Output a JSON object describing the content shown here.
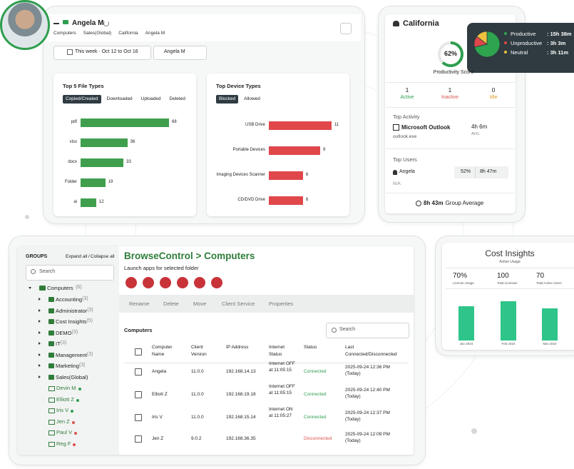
{
  "user_panel": {
    "name": "Angela M",
    "breadcrumb": [
      "Computers",
      "Sales(Global)",
      "California",
      "Angela M"
    ],
    "date_range": "This week · Oct 12 to Oct 16",
    "user_select": "Angela M"
  },
  "file_types": {
    "title": "Top 5 File Types",
    "tabs": [
      "Copied/Created",
      "Downloaded",
      "Uploaded",
      "Deleted"
    ],
    "categories": [
      "pdf",
      "xlsx",
      "docx",
      "Folder",
      "ai"
    ],
    "values": [
      68,
      36,
      33,
      19,
      12
    ],
    "color": "#3f9f4c"
  },
  "device_types": {
    "title": "Top Device Types",
    "tabs": [
      "Blocked",
      "Allowed"
    ],
    "categories": [
      "USB Drive",
      "Portable Devices",
      "Imaging Devices Scanner",
      "CD/DVD Drive"
    ],
    "values": [
      11,
      9,
      6,
      6
    ],
    "color": "#e0474a"
  },
  "location": {
    "title": "California",
    "productivity_score": {
      "value": 62,
      "label": "62%"
    },
    "score_caption": "Productivity Score",
    "stats": [
      {
        "value": "1",
        "label": "Active",
        "color": "#2e9e4f"
      },
      {
        "value": "1",
        "label": "Inactive",
        "color": "#d9534f"
      },
      {
        "value": "0",
        "label": "Idle",
        "color": "#e0a030"
      }
    ],
    "top_activity_label": "Top Activity",
    "app": "Microsoft Outlook",
    "exe": "outlook.exe",
    "avg_time": "4h 6m",
    "avg_label": "AVG",
    "top_users_label": "Top Users",
    "user": "Angela",
    "user_pct": "52%",
    "user_time": "8h 47m",
    "na": "N/A",
    "group_avg": "8h 43m",
    "group_avg_label": "Group Average"
  },
  "productivity": {
    "items": [
      {
        "name": "Productive",
        "time": ": 15h 38m",
        "color": "#2ea44f"
      },
      {
        "name": "Unproductive",
        "time": ": 3h 3m",
        "color": "#e0474a"
      },
      {
        "name": "Neutral",
        "time": ": 3h 11m",
        "color": "#f0c040"
      }
    ],
    "values": [
      938,
      183,
      191
    ]
  },
  "browse": {
    "groups_label": "GROUPS",
    "expand": "Expand all",
    "separator": "/",
    "collapse": "Collapse all",
    "search": "Search",
    "root": "Computers",
    "root_count": "(6)",
    "groups": [
      {
        "name": "Accounting",
        "count": "(3)"
      },
      {
        "name": "Administrator",
        "count": "(3)"
      },
      {
        "name": "Cost Insights",
        "count": "(5)"
      },
      {
        "name": "DEMO",
        "count": "(3)"
      },
      {
        "name": "IT",
        "count": "(3)"
      },
      {
        "name": "Management",
        "count": "(3)"
      },
      {
        "name": "Marketing",
        "count": "(3)"
      },
      {
        "name": "Sales(Global)",
        "count": ""
      }
    ],
    "computers": [
      {
        "name": "Devin M",
        "color": "#2e9e4f"
      },
      {
        "name": "Elliott Z",
        "color": "#2e9e4f"
      },
      {
        "name": "Iris V",
        "color": "#2e9e4f"
      },
      {
        "name": "Jen Z",
        "color": "#d9534f"
      },
      {
        "name": "Paul V",
        "color": "#d9534f"
      },
      {
        "name": "Reg F",
        "color": "#d9534f"
      }
    ],
    "title": "BrowseControl > Computers",
    "subtitle": "Launch apps for selected folder",
    "toolbar": [
      "Rename",
      "Delete",
      "Move",
      "Client Service",
      "Properties"
    ],
    "table_title": "Computers",
    "table_search": "Search",
    "columns": [
      "Computer Name",
      "Client Version",
      "IP Address",
      "Internet Status",
      "Status",
      "Last Connected/Disconnected"
    ],
    "rows": [
      {
        "cells": [
          "Angela",
          "11.0.0",
          "192.168.14.13",
          "Internet OFF at 11:05:15",
          "Connected",
          "2025-09-24 12:36 PM (Today)"
        ],
        "status_color": "#2e9e4f"
      },
      {
        "cells": [
          "Elliott Z",
          "11.0.0",
          "192.168.19.18",
          "Internet OFF at 11:05:15",
          "Connected",
          "2025-09-24 12:40 PM (Today)"
        ],
        "status_color": "#2e9e4f"
      },
      {
        "cells": [
          "Iris V",
          "11.0.0",
          "192.168.15.14",
          "Internet ON at 11:05:27",
          "Connected",
          "2025-09-24 12:37 PM (Today)"
        ],
        "status_color": "#2e9e4f"
      },
      {
        "cells": [
          "Jen Z",
          "9.0.2",
          "192.168.36.35",
          "",
          "Disconnected",
          "2025-09-24 12:09 PM (Today)"
        ],
        "status_color": "#d9534f"
      }
    ]
  },
  "cost": {
    "title": "Cost Insights",
    "subtitle": "Active Usage",
    "stats": [
      {
        "value": "70%",
        "label": "License Usage"
      },
      {
        "value": "100",
        "label": "Total Licenses"
      },
      {
        "value": "70",
        "label": "Total Active Users"
      }
    ],
    "categories": [
      "Jan 2024",
      "Feb 2024",
      "Mar 2024"
    ],
    "values": [
      48,
      55,
      45
    ],
    "color": "#2ec48a"
  }
}
